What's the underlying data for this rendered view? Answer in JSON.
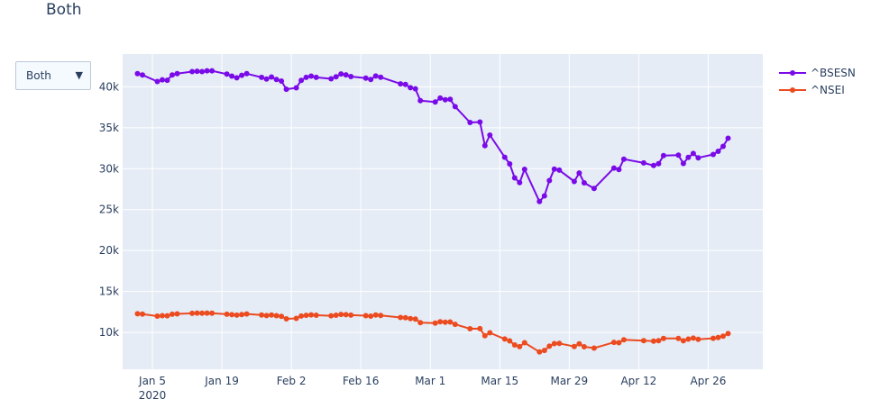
{
  "title": "Both",
  "dropdown": {
    "selected": "Both",
    "arrow": "▼"
  },
  "colors": {
    "plot_bg": "#e5ecf6",
    "grid": "#ffffff",
    "bsesn": "#7a0ae8",
    "nsei": "#ec4b1f"
  },
  "chart_data": {
    "type": "line",
    "xaxis": {
      "start": "2019-12-30",
      "end": "2020-05-07",
      "ticks": [
        {
          "date": "2020-01-05",
          "label": "Jan 5",
          "sub": "2020"
        },
        {
          "date": "2020-01-19",
          "label": "Jan 19"
        },
        {
          "date": "2020-02-02",
          "label": "Feb 2"
        },
        {
          "date": "2020-02-16",
          "label": "Feb 16"
        },
        {
          "date": "2020-03-01",
          "label": "Mar 1"
        },
        {
          "date": "2020-03-15",
          "label": "Mar 15"
        },
        {
          "date": "2020-03-29",
          "label": "Mar 29"
        },
        {
          "date": "2020-04-12",
          "label": "Apr 12"
        },
        {
          "date": "2020-04-26",
          "label": "Apr 26"
        }
      ]
    },
    "yaxis": {
      "range": [
        5500,
        44000
      ],
      "ticks": [
        {
          "value": 10000,
          "label": "10k"
        },
        {
          "value": 15000,
          "label": "15k"
        },
        {
          "value": 20000,
          "label": "20k"
        },
        {
          "value": 25000,
          "label": "25k"
        },
        {
          "value": 30000,
          "label": "30k"
        },
        {
          "value": 35000,
          "label": "35k"
        },
        {
          "value": 40000,
          "label": "40k"
        }
      ]
    },
    "legend_position": "top-right",
    "series": [
      {
        "name": "^BSESN",
        "color": "#7a0ae8",
        "x": [
          "2020-01-02",
          "2020-01-03",
          "2020-01-06",
          "2020-01-07",
          "2020-01-08",
          "2020-01-09",
          "2020-01-10",
          "2020-01-13",
          "2020-01-14",
          "2020-01-15",
          "2020-01-16",
          "2020-01-17",
          "2020-01-20",
          "2020-01-21",
          "2020-01-22",
          "2020-01-23",
          "2020-01-24",
          "2020-01-27",
          "2020-01-28",
          "2020-01-29",
          "2020-01-30",
          "2020-01-31",
          "2020-02-01",
          "2020-02-03",
          "2020-02-04",
          "2020-02-05",
          "2020-02-06",
          "2020-02-07",
          "2020-02-10",
          "2020-02-11",
          "2020-02-12",
          "2020-02-13",
          "2020-02-14",
          "2020-02-17",
          "2020-02-18",
          "2020-02-19",
          "2020-02-20",
          "2020-02-24",
          "2020-02-25",
          "2020-02-26",
          "2020-02-27",
          "2020-02-28",
          "2020-03-02",
          "2020-03-03",
          "2020-03-04",
          "2020-03-05",
          "2020-03-06",
          "2020-03-09",
          "2020-03-11",
          "2020-03-12",
          "2020-03-13",
          "2020-03-16",
          "2020-03-17",
          "2020-03-18",
          "2020-03-19",
          "2020-03-20",
          "2020-03-23",
          "2020-03-24",
          "2020-03-25",
          "2020-03-26",
          "2020-03-27",
          "2020-03-30",
          "2020-03-31",
          "2020-04-01",
          "2020-04-03",
          "2020-04-07",
          "2020-04-08",
          "2020-04-09",
          "2020-04-13",
          "2020-04-15",
          "2020-04-16",
          "2020-04-17",
          "2020-04-20",
          "2020-04-21",
          "2020-04-22",
          "2020-04-23",
          "2020-04-24",
          "2020-04-27",
          "2020-04-28",
          "2020-04-29",
          "2020-04-30"
        ],
        "y": [
          41600,
          41450,
          40650,
          40850,
          40800,
          41450,
          41600,
          41850,
          41900,
          41850,
          41950,
          41950,
          41550,
          41300,
          41100,
          41400,
          41600,
          41150,
          40950,
          41200,
          40900,
          40700,
          39700,
          39870,
          40790,
          41150,
          41300,
          41150,
          40980,
          41220,
          41570,
          41460,
          41250,
          41050,
          40890,
          41320,
          41170,
          40360,
          40280,
          39890,
          39750,
          38300,
          38140,
          38620,
          38410,
          38470,
          37580,
          35640,
          35700,
          32800,
          34100,
          31390,
          30580,
          28870,
          28290,
          29920,
          25980,
          26670,
          28540,
          29950,
          29820,
          28440,
          29470,
          28270,
          27590,
          30070,
          29900,
          31160,
          30700,
          30380,
          30600,
          31590,
          31650,
          30630,
          31380,
          31860,
          31330,
          31740,
          32120,
          32720,
          33720
        ]
      },
      {
        "name": "^NSEI",
        "color": "#ec4b1f",
        "x": [
          "2020-01-02",
          "2020-01-03",
          "2020-01-06",
          "2020-01-07",
          "2020-01-08",
          "2020-01-09",
          "2020-01-10",
          "2020-01-13",
          "2020-01-14",
          "2020-01-15",
          "2020-01-16",
          "2020-01-17",
          "2020-01-20",
          "2020-01-21",
          "2020-01-22",
          "2020-01-23",
          "2020-01-24",
          "2020-01-27",
          "2020-01-28",
          "2020-01-29",
          "2020-01-30",
          "2020-01-31",
          "2020-02-01",
          "2020-02-03",
          "2020-02-04",
          "2020-02-05",
          "2020-02-06",
          "2020-02-07",
          "2020-02-10",
          "2020-02-11",
          "2020-02-12",
          "2020-02-13",
          "2020-02-14",
          "2020-02-17",
          "2020-02-18",
          "2020-02-19",
          "2020-02-20",
          "2020-02-24",
          "2020-02-25",
          "2020-02-26",
          "2020-02-27",
          "2020-02-28",
          "2020-03-02",
          "2020-03-03",
          "2020-03-04",
          "2020-03-05",
          "2020-03-06",
          "2020-03-09",
          "2020-03-11",
          "2020-03-12",
          "2020-03-13",
          "2020-03-16",
          "2020-03-17",
          "2020-03-18",
          "2020-03-19",
          "2020-03-20",
          "2020-03-23",
          "2020-03-24",
          "2020-03-25",
          "2020-03-26",
          "2020-03-27",
          "2020-03-30",
          "2020-03-31",
          "2020-04-01",
          "2020-04-03",
          "2020-04-07",
          "2020-04-08",
          "2020-04-09",
          "2020-04-13",
          "2020-04-15",
          "2020-04-16",
          "2020-04-17",
          "2020-04-20",
          "2020-04-21",
          "2020-04-22",
          "2020-04-23",
          "2020-04-24",
          "2020-04-27",
          "2020-04-28",
          "2020-04-29",
          "2020-04-30"
        ],
        "y": [
          12280,
          12230,
          11990,
          12050,
          12030,
          12220,
          12260,
          12330,
          12360,
          12340,
          12360,
          12350,
          12220,
          12170,
          12110,
          12180,
          12250,
          12120,
          12060,
          12130,
          12040,
          11960,
          11660,
          11710,
          12000,
          12090,
          12140,
          12100,
          12030,
          12100,
          12200,
          12170,
          12110,
          12050,
          11990,
          12130,
          12080,
          11830,
          11800,
          11680,
          11630,
          11200,
          11130,
          11300,
          11250,
          11270,
          10990,
          10450,
          10460,
          9590,
          9955,
          9200,
          8970,
          8470,
          8260,
          8750,
          7610,
          7800,
          8320,
          8640,
          8660,
          8280,
          8600,
          8250,
          8080,
          8790,
          8750,
          9110,
          8990,
          8930,
          8990,
          9270,
          9260,
          8980,
          9190,
          9310,
          9150,
          9280,
          9380,
          9550,
          9860
        ]
      }
    ]
  }
}
